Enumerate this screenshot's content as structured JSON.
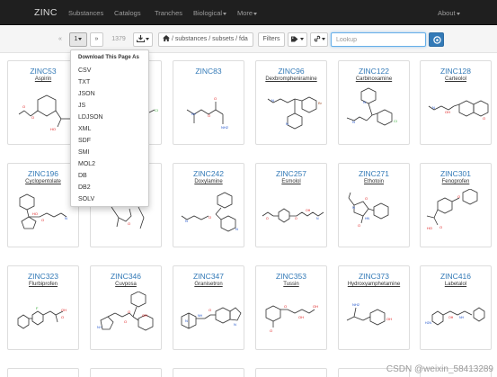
{
  "nav": {
    "brand": "ZINC",
    "items": [
      "Substances",
      "Catalogs",
      "Tranches",
      "Biological",
      "More"
    ],
    "about": "About"
  },
  "toolbar": {
    "prev": "«",
    "page": "1",
    "next": "»",
    "count": "1379",
    "breadcrumb": "/ substances / subsets / fda",
    "filters": "Filters",
    "lookup_placeholder": "Lookup"
  },
  "download": {
    "header": "Download This Page As",
    "formats": [
      "CSV",
      "TXT",
      "JSON",
      "JS",
      "LDJSON",
      "XML",
      "SDF",
      "SMI",
      "MOL2",
      "DB",
      "DB2",
      "SOLV"
    ]
  },
  "cards": [
    {
      "id": "ZINC53",
      "name": "Aspirin"
    },
    {
      "id": "",
      "name": ""
    },
    {
      "id": "ZINC83",
      "name": ""
    },
    {
      "id": "ZINC96",
      "name": "Dexbrompheniramine"
    },
    {
      "id": "ZINC122",
      "name": "Carbinoxamine"
    },
    {
      "id": "ZINC128",
      "name": "Carteolol"
    },
    {
      "id": "ZINC196",
      "name": "Cyclopentolate"
    },
    {
      "id": "",
      "name": ""
    },
    {
      "id": "ZINC242",
      "name": "Doxylamine"
    },
    {
      "id": "ZINC257",
      "name": "Esmolol"
    },
    {
      "id": "ZINC271",
      "name": "Ethotoin"
    },
    {
      "id": "ZINC301",
      "name": "Fenoprofen"
    },
    {
      "id": "ZINC323",
      "name": "Flurbiprofen"
    },
    {
      "id": "ZINC346",
      "name": "Cuvposa"
    },
    {
      "id": "ZINC347",
      "name": "Granisetron"
    },
    {
      "id": "ZINC353",
      "name": "Tussin"
    },
    {
      "id": "ZINC373",
      "name": "Hydroxyamphetamine"
    },
    {
      "id": "ZINC416",
      "name": "Labetalol"
    }
  ],
  "watermark": "CSDN @weixin_58413289",
  "colors": {
    "navbar": "#1f1f1f",
    "link": "#337ab7",
    "oxygen": "#e02020",
    "nitrogen": "#2255cc",
    "halogen": "#33aa33"
  }
}
